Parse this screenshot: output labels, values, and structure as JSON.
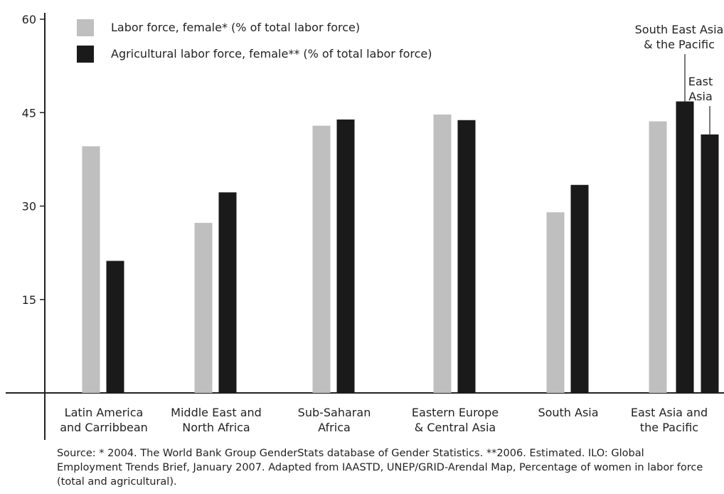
{
  "chart_data": {
    "type": "bar",
    "title": "",
    "xlabel": "",
    "ylabel": "",
    "ylim": [
      0,
      60
    ],
    "yticks": [
      15,
      30,
      45,
      60
    ],
    "grid": false,
    "legend_position": "top-left",
    "categories": [
      [
        "Latin America",
        "and Carribbean"
      ],
      [
        "Middle East and",
        "North Africa"
      ],
      [
        "Sub-Saharan",
        "Africa"
      ],
      [
        "Eastern Europe",
        "& Central Asia"
      ],
      [
        "South Asia"
      ],
      [
        "East Asia and",
        "the Pacific"
      ]
    ],
    "series": [
      {
        "name": "Labor force, female* (% of total labor force)",
        "color": "#bfbfbf",
        "values": [
          39.6,
          27.3,
          42.9,
          44.7,
          29.0,
          43.6
        ]
      },
      {
        "name": "Agricultural labor force, female** (% of total labor force)",
        "color": "#1a1a1a",
        "values": [
          21.2,
          32.2,
          43.9,
          43.8,
          33.4,
          [
            46.8,
            41.5
          ]
        ]
      }
    ],
    "annotations": [
      {
        "lines": [
          "South East Asia",
          "& the Pacific"
        ],
        "value": 46.8
      },
      {
        "lines": [
          "East",
          "Asia"
        ],
        "value": 41.5
      }
    ],
    "source": "Source: * 2004. The World Bank Group GenderStats database of Gender Statistics. **2006. Estimated. ILO: Global Employment Trends Brief, January 2007. Adapted from IAASTD, UNEP/GRID-Arendal Map, Percentage of women in labor force (total and agricultural)."
  }
}
